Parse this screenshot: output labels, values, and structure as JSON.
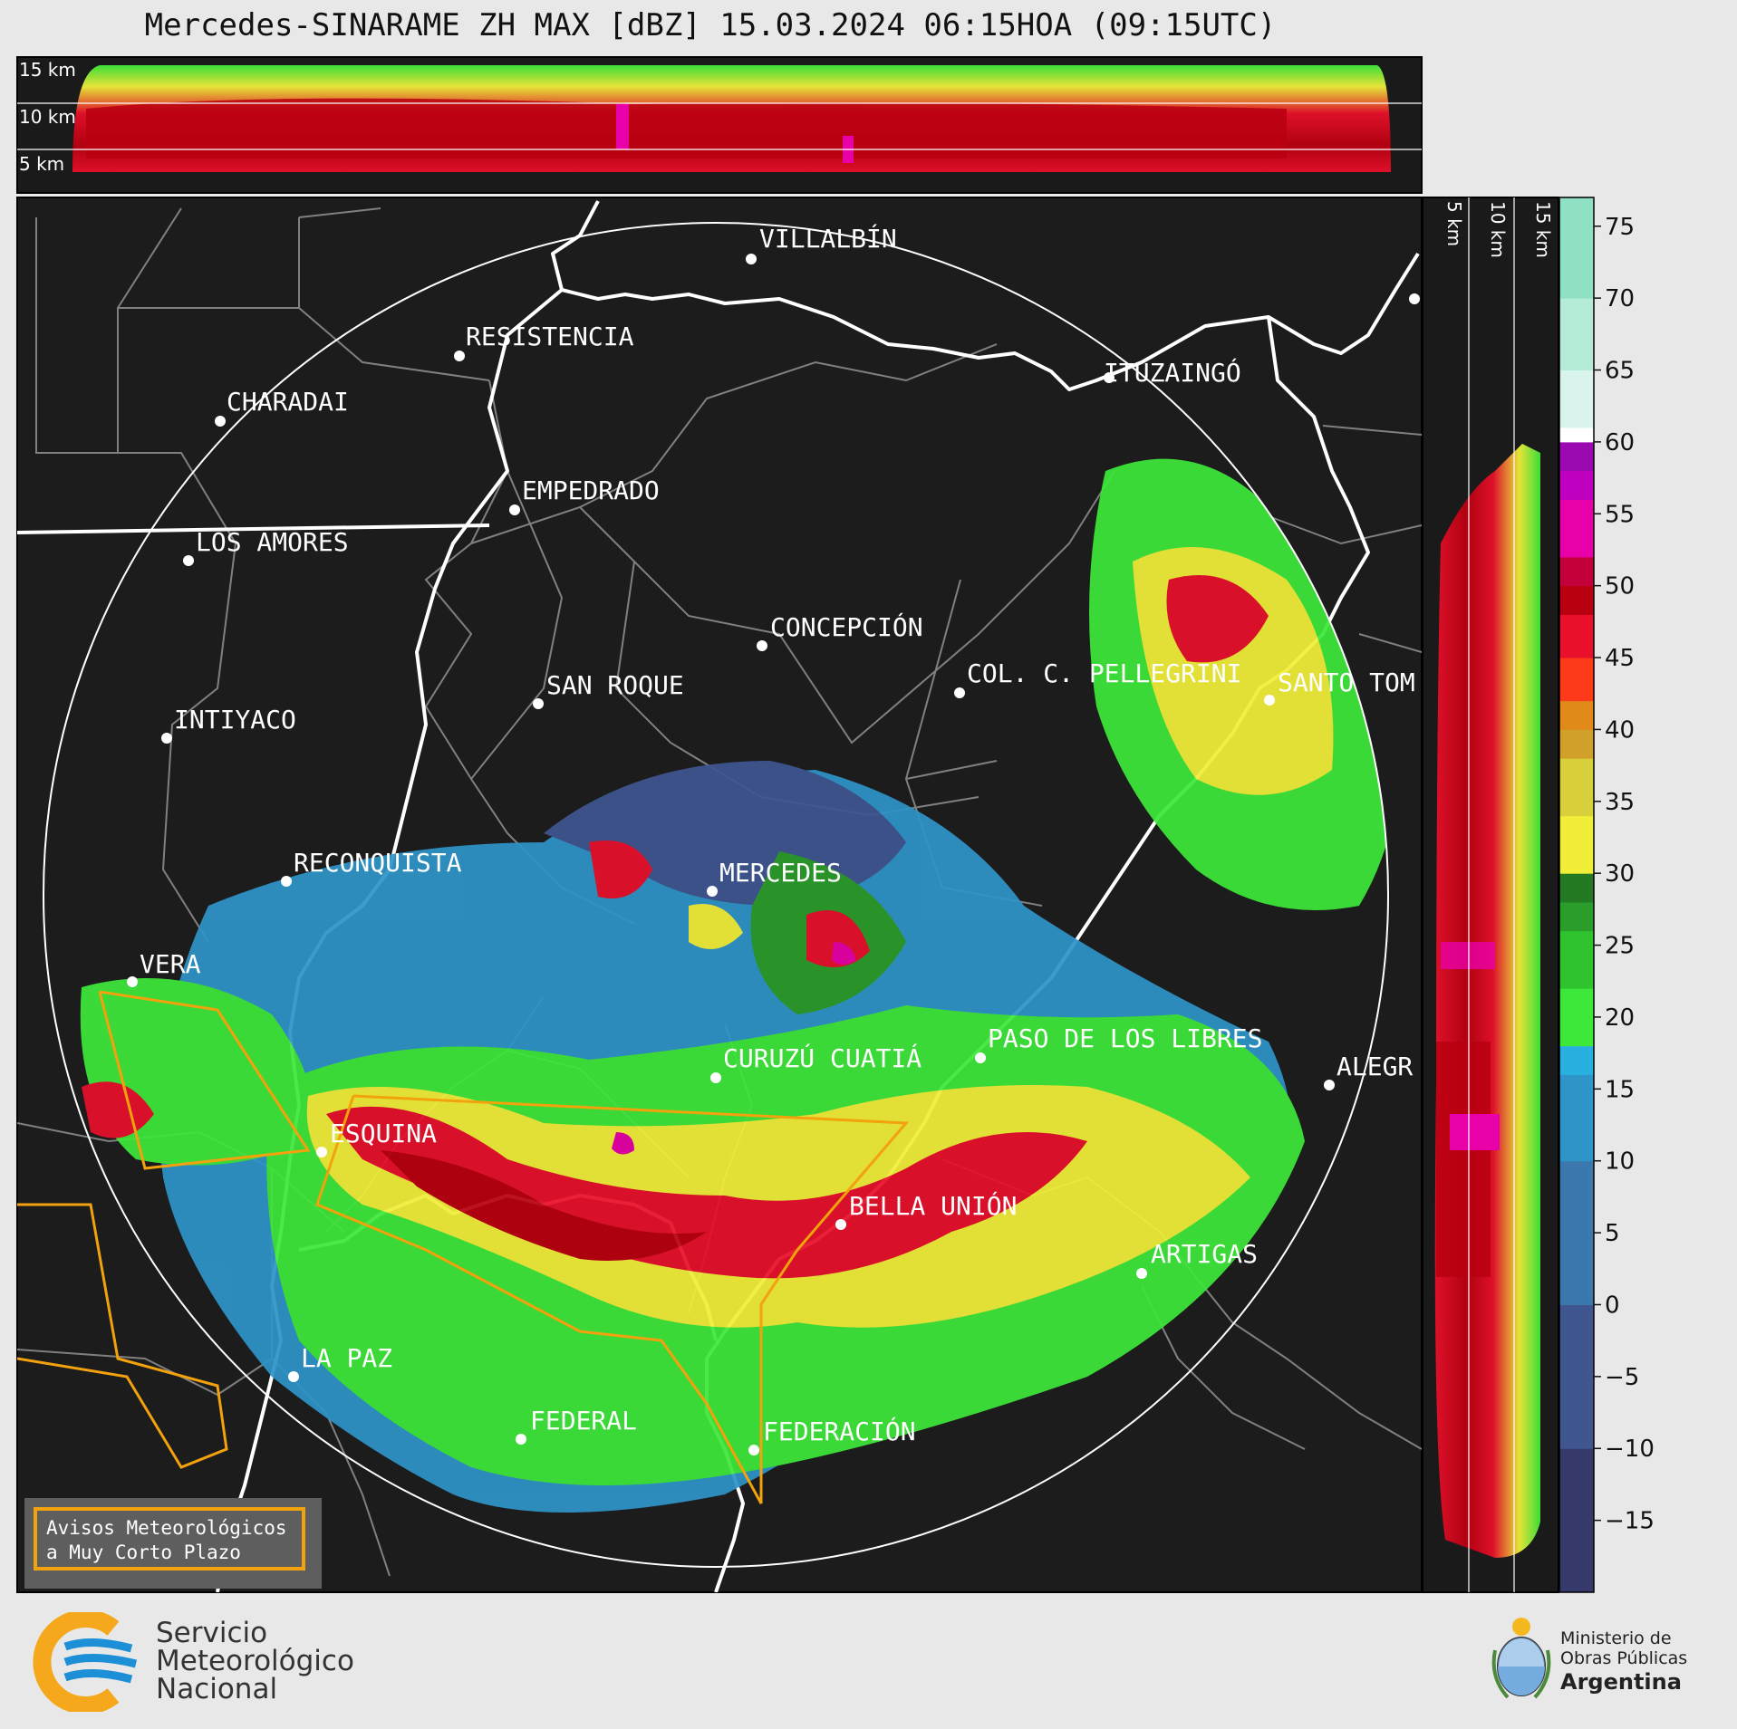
{
  "title": "Mercedes-SINARAME ZH MAX [dBZ] 15.03.2024 06:15HOA (09:15UTC)",
  "height_labels_top": [
    "15 km",
    "10 km",
    "5 km"
  ],
  "height_labels_side": [
    "5 km",
    "10 km",
    "15 km"
  ],
  "cities": [
    {
      "name": "VILLALBÍN"
    },
    {
      "name": "RESISTENCIA"
    },
    {
      "name": "CHARADAI"
    },
    {
      "name": "ITUZAINGÓ"
    },
    {
      "name": "EMPEDRADO"
    },
    {
      "name": "LOS AMORES"
    },
    {
      "name": "CONCEPCIÓN"
    },
    {
      "name": "COL. C. PELLEGRINI"
    },
    {
      "name": "SANTO TOM"
    },
    {
      "name": "SAN ROQUE"
    },
    {
      "name": "INTIYACO"
    },
    {
      "name": "MERCEDES"
    },
    {
      "name": "RECONQUISTA"
    },
    {
      "name": "VERA"
    },
    {
      "name": "CURUZÚ CUATIÁ"
    },
    {
      "name": "PASO DE LOS LIBRES"
    },
    {
      "name": "ALEGR"
    },
    {
      "name": "ESQUINA"
    },
    {
      "name": "BELLA UNIÓN"
    },
    {
      "name": "ARTIGAS"
    },
    {
      "name": "LA PAZ"
    },
    {
      "name": "FEDERAL"
    },
    {
      "name": "FEDERACIÓN"
    }
  ],
  "colorbar": {
    "unit": "dBZ",
    "ticks": [
      "75",
      "70",
      "65",
      "60",
      "55",
      "50",
      "45",
      "40",
      "35",
      "30",
      "25",
      "20",
      "15",
      "10",
      "5",
      "0",
      "−5",
      "−10",
      "−15"
    ],
    "range": [
      -20,
      77
    ],
    "colors": {
      "-20": "#353a6a",
      "-10": "#3f5691",
      "0": "#3b78ad",
      "10": "#2f94c8",
      "16": "#27b0e0",
      "18": "#3ee83a",
      "22": "#2fc42e",
      "26": "#2a9d2a",
      "28": "#237a23",
      "30": "#f1ee3a",
      "34": "#d8d03a",
      "38": "#d0a02a",
      "40": "#e08a1a",
      "42": "#ff3a1a",
      "45": "#e8102a",
      "48": "#b80010",
      "50": "#c4003a",
      "52": "#e800a8",
      "56": "#c000c0",
      "58": "#9a0ab0",
      "60": "#ffffff",
      "61": "#d8f4ec",
      "65": "#b4ecd8",
      "70": "#90e0c4",
      "77": "#78d8b8"
    }
  },
  "aviso": {
    "line1": "Avisos Meteorológicos",
    "line2": "a Muy Corto Plazo"
  },
  "smn_logo": {
    "line1": "Servicio",
    "line2": "Meteorológico",
    "line3": "Nacional"
  },
  "ministry_logo": {
    "line1": "Ministerio de",
    "line2": "Obras Públicas",
    "line3": "Argentina"
  }
}
